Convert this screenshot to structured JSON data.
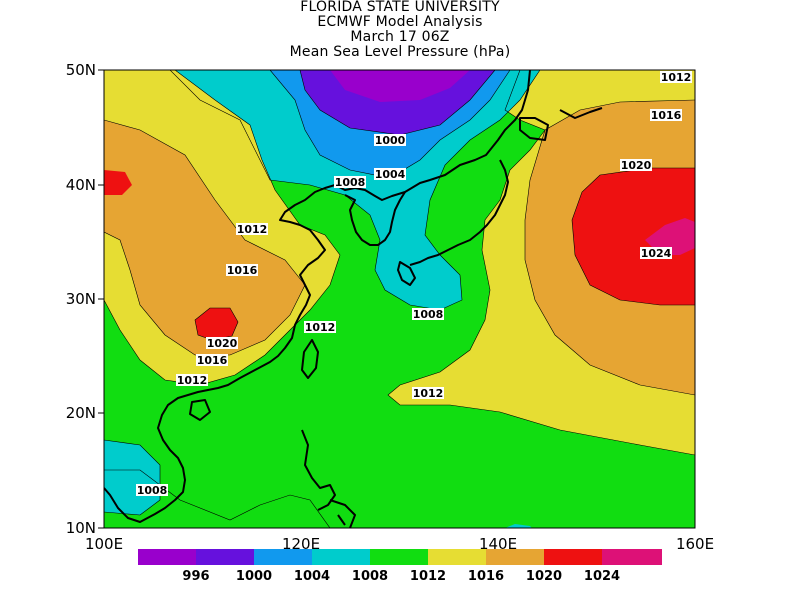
{
  "title": {
    "line1": "FLORIDA STATE UNIVERSITY",
    "line2": "ECMWF Model Analysis",
    "line3": "March 17 06Z",
    "line4": "Mean Sea Level Pressure (hPa)"
  },
  "map": {
    "lon_range": [
      100,
      160
    ],
    "lat_range": [
      10,
      50
    ],
    "y_ticks": [
      "50N",
      "40N",
      "30N",
      "20N",
      "10N"
    ],
    "x_ticks": [
      "100E",
      "120E",
      "140E",
      "160E"
    ]
  },
  "colors": {
    "lt996": "#9900cc",
    "p996_1000": "#6611dd",
    "p1000_1004": "#1199ee",
    "p1004_1008": "#00cccc",
    "p1008_1012": "#11dd11",
    "p1012_1016": "#e6dd33",
    "p1016_1020": "#e6a533",
    "p1020_1024": "#ee1111",
    "gt1024": "#dd1177",
    "coast": "#000000"
  },
  "contour_labels": [
    "1012",
    "1016",
    "1020",
    "1000",
    "1004",
    "1008",
    "1012",
    "1016",
    "1020",
    "1016",
    "1012",
    "1008",
    "1012",
    "1024",
    "1008"
  ],
  "legend": {
    "labels": [
      "996",
      "1000",
      "1004",
      "1008",
      "1012",
      "1016",
      "1020",
      "1024"
    ]
  }
}
